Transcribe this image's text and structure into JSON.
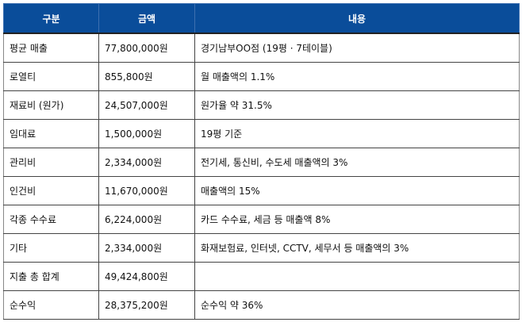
{
  "headers": [
    "구분",
    "금액",
    "내용"
  ],
  "rows": [
    [
      "평균 매출",
      "77,800,000원",
      "경기남부OO점 (19평 · 7테이블)"
    ],
    [
      "로열티",
      "855,800원",
      "월 매출액의 1.1%"
    ],
    [
      "재료비 (원가)",
      "24,507,000원",
      "원가율 약 31.5%"
    ],
    [
      "임대료",
      "1,500,000원",
      "19평 기준"
    ],
    [
      "관리비",
      "2,334,000원",
      "전기세, 통신비, 수도세 매출액의 3%"
    ],
    [
      "인건비",
      "11,670,000원",
      "매출액의 15%"
    ],
    [
      "각종 수수료",
      "6,224,000원",
      "카드 수수료, 세금 등 매출액 8%"
    ],
    [
      "기타",
      "2,334,000원",
      "화재보험료, 인터넷, CCTV, 세무서 등 매출액의 3%"
    ],
    [
      "지출 총 합계",
      "49,424,800원",
      ""
    ],
    [
      "순수익",
      "28,375,200원",
      "순수익 약 36%"
    ]
  ]
}
